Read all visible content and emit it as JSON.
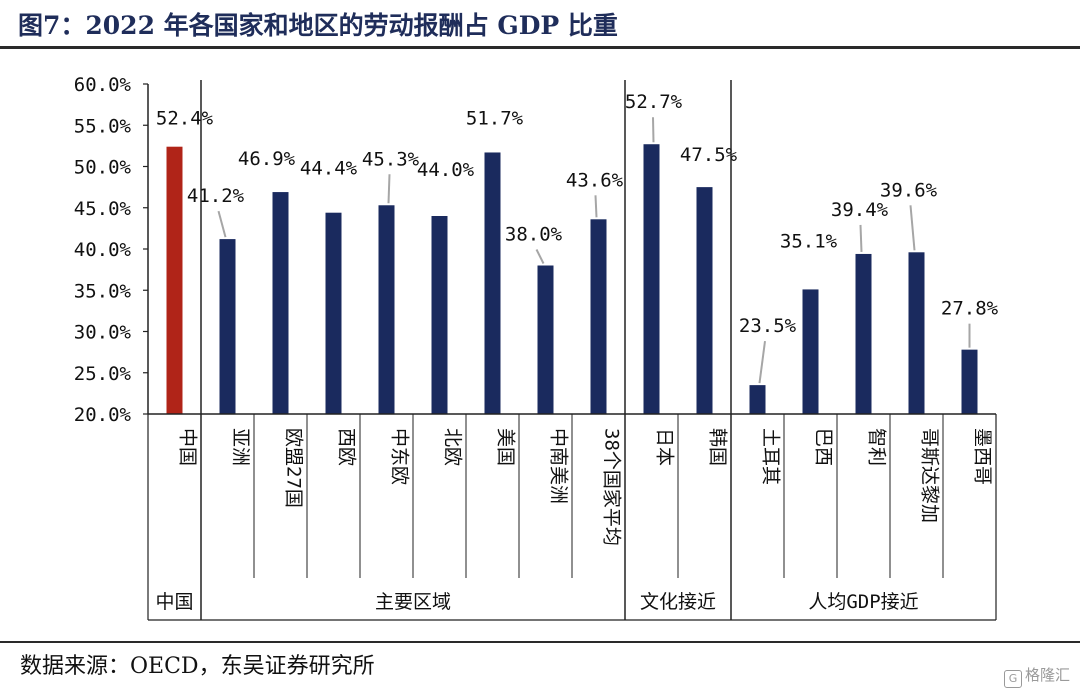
{
  "title": "图7：2022 年各国家和地区的劳动报酬占 GDP 比重",
  "source": "数据来源：OECD，东吴证券研究所",
  "watermark": "格隆汇",
  "colors": {
    "china": "#b02418",
    "others": "#1a2a5e",
    "axis": "#222222",
    "leader": "#a6a6a6"
  },
  "chart_data": {
    "type": "bar",
    "ylim": [
      20,
      60
    ],
    "yticks": [
      "20.0%",
      "25.0%",
      "30.0%",
      "35.0%",
      "40.0%",
      "45.0%",
      "50.0%",
      "55.0%",
      "60.0%"
    ],
    "categories": [
      "中国",
      "亚洲",
      "欧盟27国",
      "西欧",
      "中东欧",
      "北欧",
      "美国",
      "中南美洲",
      "38个国家平均",
      "日本",
      "韩国",
      "土耳其",
      "巴西",
      "智利",
      "哥斯达黎加",
      "墨西哥"
    ],
    "values": [
      52.4,
      41.2,
      46.9,
      44.4,
      45.3,
      44.0,
      51.7,
      38.0,
      43.6,
      52.7,
      47.5,
      23.5,
      35.1,
      39.4,
      39.6,
      27.8
    ],
    "data_labels": [
      "52.4%",
      "41.2%",
      "46.9%",
      "44.4%",
      "45.3%",
      "44.0%",
      "51.7%",
      "38.0%",
      "43.6%",
      "52.7%",
      "47.5%",
      "23.5%",
      "35.1%",
      "39.4%",
      "39.6%",
      "27.8%"
    ],
    "groups": [
      {
        "name": "中国",
        "count": 1
      },
      {
        "name": "主要区域",
        "count": 8
      },
      {
        "name": "文化接近",
        "count": 2
      },
      {
        "name": "人均GDP接近",
        "count": 5
      }
    ],
    "grid": false,
    "legend": "none"
  }
}
